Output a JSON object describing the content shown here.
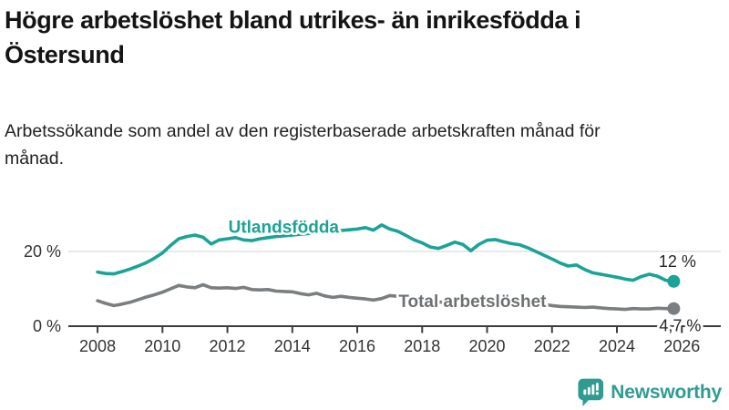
{
  "header": {
    "title": "Högre arbetslöshet bland utrikes- än inrikesfödda i Östersund",
    "subtitle": "Arbetssökande som andel av den registerbaserade arbetskraften månad för månad."
  },
  "colors": {
    "accent_teal": "#1AA396",
    "series_gray": "#7B7E80",
    "gray_label": "#6E7173",
    "axis_line": "#3C3C3C",
    "grid_line": "#D9D9D9",
    "tick_text": "#333333",
    "end_label_text": "#262626",
    "logo_teal": "#2F9C92"
  },
  "chart_data": {
    "type": "line",
    "title": "Högre arbetslöshet bland utrikes- än inrikesfödda i Östersund",
    "subtitle": "Arbetssökande som andel av den registerbaserade arbetskraften månad för månad.",
    "xlabel": "",
    "ylabel": "",
    "xlim": [
      2007.1,
      2027.2
    ],
    "ylim": [
      0,
      28.8
    ],
    "grid": "single-horizontal-gridline-at-20",
    "legend_position": "inline-labels-on-lines",
    "x_ticks": [
      2008,
      2010,
      2012,
      2014,
      2016,
      2018,
      2020,
      2022,
      2024,
      2026
    ],
    "y_ticks": [
      {
        "value": 0,
        "label": "0 %"
      },
      {
        "value": 20,
        "label": "20 %"
      }
    ],
    "x_start": 2008.0,
    "x_step": 0.25,
    "series": [
      {
        "name": "Utlandsfödda",
        "color": "#1AA396",
        "label_color": "#1AA396",
        "label_pos": {
          "year": 2012.03,
          "value": 25.0
        },
        "end_label": "12 %",
        "end_value": 12,
        "values": [
          14.5,
          14.1,
          14.0,
          14.6,
          15.3,
          16.1,
          17.0,
          18.2,
          19.6,
          21.6,
          23.4,
          24.0,
          24.4,
          23.8,
          22.0,
          23.1,
          23.4,
          23.7,
          23.1,
          22.9,
          23.4,
          23.7,
          24.0,
          24.2,
          24.4,
          24.6,
          24.8,
          25.0,
          25.2,
          25.4,
          25.6,
          25.8,
          26.0,
          26.4,
          25.7,
          27.1,
          26.0,
          25.4,
          24.3,
          23.1,
          22.3,
          21.2,
          20.8,
          21.6,
          22.5,
          21.9,
          20.2,
          21.9,
          23.0,
          23.2,
          22.6,
          22.1,
          21.8,
          21.0,
          20.0,
          19.0,
          18.0,
          16.9,
          16.1,
          16.4,
          15.2,
          14.3,
          13.9,
          13.5,
          13.1,
          12.6,
          12.3,
          13.3,
          13.9,
          13.4,
          12.3,
          12.0
        ]
      },
      {
        "name": "Total arbetslöshet",
        "color": "#7B7E80",
        "label_color": "#6E7173",
        "label_pos": {
          "year": 2017.27,
          "value": 5.1
        },
        "end_label": "4,7 %",
        "end_value": 4.7,
        "values": [
          6.8,
          6.1,
          5.5,
          5.9,
          6.4,
          7.1,
          7.8,
          8.4,
          9.1,
          10.0,
          10.9,
          10.5,
          10.3,
          11.1,
          10.3,
          10.2,
          10.3,
          10.1,
          10.4,
          9.8,
          9.7,
          9.8,
          9.4,
          9.3,
          9.2,
          8.7,
          8.4,
          8.8,
          8.1,
          7.7,
          8.0,
          7.7,
          7.5,
          7.3,
          7.0,
          7.4,
          8.2,
          8.0,
          7.6,
          7.2,
          6.9,
          6.7,
          6.5,
          6.3,
          6.1,
          6.0,
          6.1,
          6.3,
          6.6,
          7.2,
          7.5,
          7.2,
          6.9,
          6.6,
          6.2,
          5.8,
          5.5,
          5.3,
          5.2,
          5.1,
          5.0,
          5.1,
          4.9,
          4.7,
          4.6,
          4.5,
          4.7,
          4.6,
          4.6,
          4.8,
          4.7,
          4.7
        ]
      }
    ]
  },
  "logo": {
    "text": "Newsworthy"
  }
}
